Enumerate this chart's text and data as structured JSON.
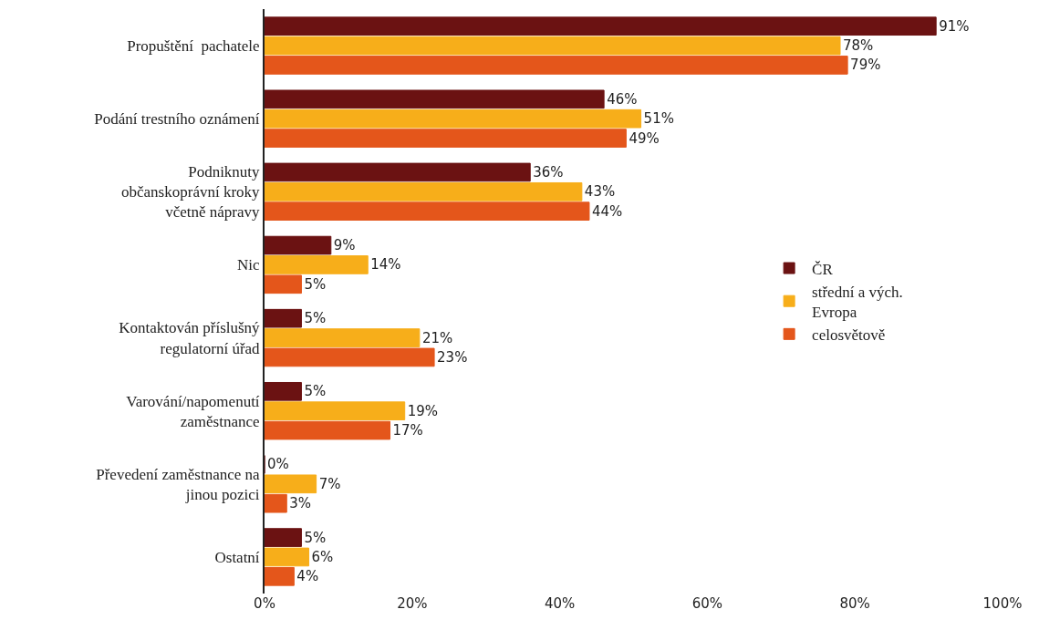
{
  "chart_data": {
    "type": "bar",
    "orientation": "horizontal",
    "categories": [
      "Propuštění  pachatele",
      "Podání trestního oznámení",
      "Podniknuty\nobčanskoprávní kroky\nvčetně nápravy",
      "Nic",
      "Kontaktován příslušný\nregulatorní úřad",
      "Varování/napomenutí\nzaměstnance",
      "Převedení zaměstnance na\njinou pozici",
      "Ostatní"
    ],
    "series": [
      {
        "name": "ČR",
        "color": "#6b1212",
        "values": [
          91,
          46,
          36,
          9,
          5,
          5,
          0,
          5
        ],
        "value_labels": [
          "91%",
          "46%",
          "36%",
          "9%",
          "5%",
          "5%",
          "0%",
          "5%"
        ]
      },
      {
        "name": "střední a vých.\nEvropa",
        "color": "#f7ae1a",
        "values": [
          78,
          51,
          43,
          14,
          21,
          19,
          7,
          6
        ],
        "value_labels": [
          "78%",
          "51%",
          "43%",
          "14%",
          "21%",
          "19%",
          "7%",
          "6%"
        ]
      },
      {
        "name": "celosvětově",
        "color": "#e4561b",
        "values": [
          79,
          49,
          44,
          5,
          23,
          17,
          3,
          4
        ],
        "value_labels": [
          "79%",
          "49%",
          "44%",
          "5%",
          "23%",
          "17%",
          "3%",
          "4%"
        ]
      }
    ],
    "xlim": [
      0,
      100
    ],
    "xticks": [
      {
        "value": 0,
        "label": "0%"
      },
      {
        "value": 20,
        "label": "20%"
      },
      {
        "value": 40,
        "label": "40%"
      },
      {
        "value": 60,
        "label": "60%"
      },
      {
        "value": 80,
        "label": "80%"
      },
      {
        "value": 100,
        "label": "100%"
      }
    ],
    "grid": false,
    "legend": "right"
  }
}
